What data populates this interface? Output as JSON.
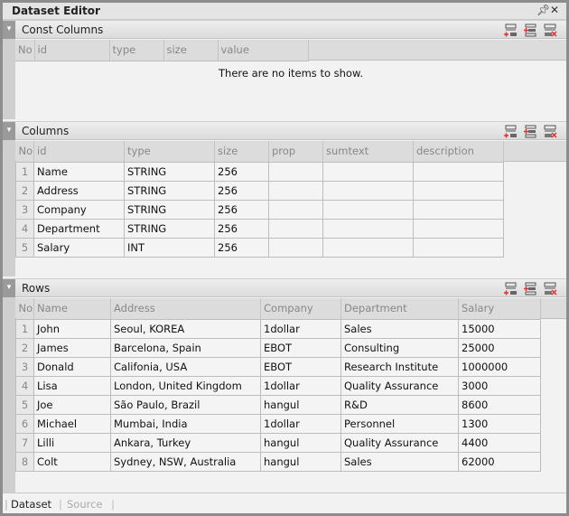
{
  "title": "Dataset Editor",
  "title_icons": [
    "pin-icon",
    "close-icon"
  ],
  "toolbar_icons": [
    "add-row-icon",
    "insert-row-icon",
    "delete-row-icon"
  ],
  "const_columns": {
    "title": "Const Columns",
    "headers": [
      "No",
      "id",
      "type",
      "size",
      "value"
    ],
    "empty_text": "There are no items to show.",
    "rows": []
  },
  "columns": {
    "title": "Columns",
    "headers": [
      "No",
      "id",
      "type",
      "size",
      "prop",
      "sumtext",
      "description"
    ],
    "rows": [
      [
        "1",
        "Name",
        "STRING",
        "256",
        "",
        "",
        ""
      ],
      [
        "2",
        "Address",
        "STRING",
        "256",
        "",
        "",
        ""
      ],
      [
        "3",
        "Company",
        "STRING",
        "256",
        "",
        "",
        ""
      ],
      [
        "4",
        "Department",
        "STRING",
        "256",
        "",
        "",
        ""
      ],
      [
        "5",
        "Salary",
        "INT",
        "256",
        "",
        "",
        ""
      ]
    ]
  },
  "rows": {
    "title": "Rows",
    "headers": [
      "No",
      "Name",
      "Address",
      "Company",
      "Department",
      "Salary"
    ],
    "rows": [
      [
        "1",
        "John",
        "Seoul, KOREA",
        "1dollar",
        "Sales",
        "15000"
      ],
      [
        "2",
        "James",
        "Barcelona, Spain",
        "EBOT",
        "Consulting",
        "25000"
      ],
      [
        "3",
        "Donald",
        "Califonia, USA",
        "EBOT",
        "Research Institute",
        "1000000"
      ],
      [
        "4",
        "Lisa",
        "London, United Kingdom",
        "1dollar",
        "Quality Assurance",
        "3000"
      ],
      [
        "5",
        "Joe",
        "São Paulo, Brazil",
        "hangul",
        "R&D",
        "8600"
      ],
      [
        "6",
        "Michael",
        "Mumbai, India",
        "1dollar",
        "Personnel",
        "1300"
      ],
      [
        "7",
        "Lilli",
        "Ankara, Turkey",
        "hangul",
        "Quality Assurance",
        "4400"
      ],
      [
        "8",
        "Colt",
        "Sydney, NSW, Australia",
        "hangul",
        "Sales",
        "62000"
      ]
    ]
  },
  "tabs": [
    {
      "label": "Dataset",
      "active": true
    },
    {
      "label": "Source",
      "active": false
    }
  ]
}
